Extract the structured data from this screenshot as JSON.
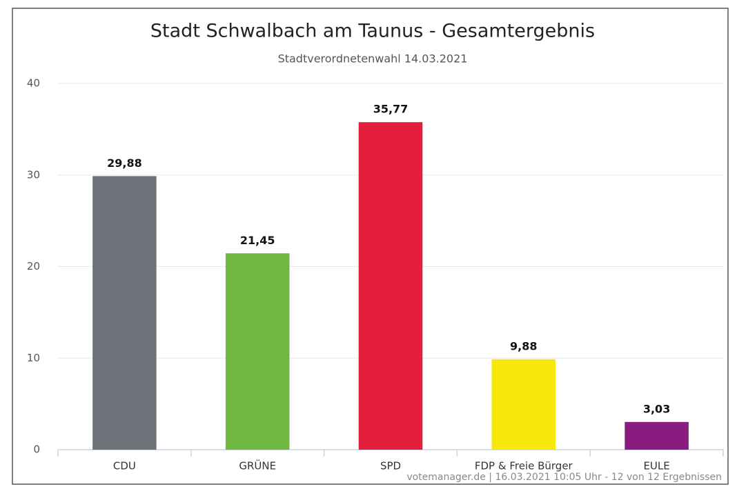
{
  "chart_data": {
    "type": "bar",
    "title": "Stadt Schwalbach am Taunus - Gesamtergebnis",
    "subtitle": "Stadtverordnetenwahl 14.03.2021",
    "credits": "votemanager.de | 16.03.2021 10:05 Uhr - 12 von 12 Ergebnissen",
    "categories": [
      "CDU",
      "GRÜNE",
      "SPD",
      "FDP & Freie Bürger",
      "EULE"
    ],
    "values": [
      29.88,
      21.45,
      35.77,
      9.88,
      3.03
    ],
    "value_labels": [
      "29,88",
      "21,45",
      "35,77",
      "9,88",
      "3,03"
    ],
    "colors": [
      "#6d7279",
      "#71b843",
      "#e31f3b",
      "#f6e70c",
      "#8a1b7f"
    ],
    "ylim": [
      0,
      40
    ],
    "yticks": [
      0,
      10,
      20,
      30,
      40
    ],
    "grid": true
  }
}
